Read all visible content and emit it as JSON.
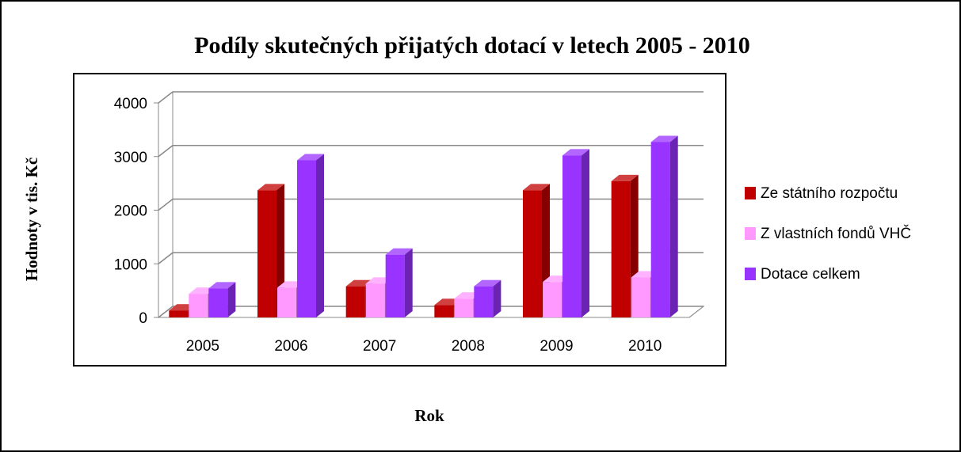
{
  "chart_data": {
    "type": "bar3d",
    "title": "Podíly skutečných přijatých dotací v letech 2005 - 2010",
    "x_label": "Rok",
    "y_label": "Hodnoty v tis. Kč",
    "categories": [
      "2005",
      "2006",
      "2007",
      "2008",
      "2009",
      "2010"
    ],
    "series": [
      {
        "name": "Ze státního rozpočtu",
        "color": "#c00000",
        "values": [
          130,
          2370,
          580,
          230,
          2370,
          2540
        ]
      },
      {
        "name": "Z vlastních fondů VHČ",
        "color": "#ff99ff",
        "values": [
          440,
          555,
          630,
          350,
          660,
          745
        ]
      },
      {
        "name": "Dotace celkem",
        "color": "#9933ff",
        "values": [
          540,
          2930,
          1170,
          580,
          3020,
          3270
        ]
      }
    ],
    "ylim": [
      0,
      4000
    ],
    "yticks": [
      0,
      1000,
      2000,
      3000,
      4000
    ],
    "grid": true,
    "legend": "right"
  }
}
